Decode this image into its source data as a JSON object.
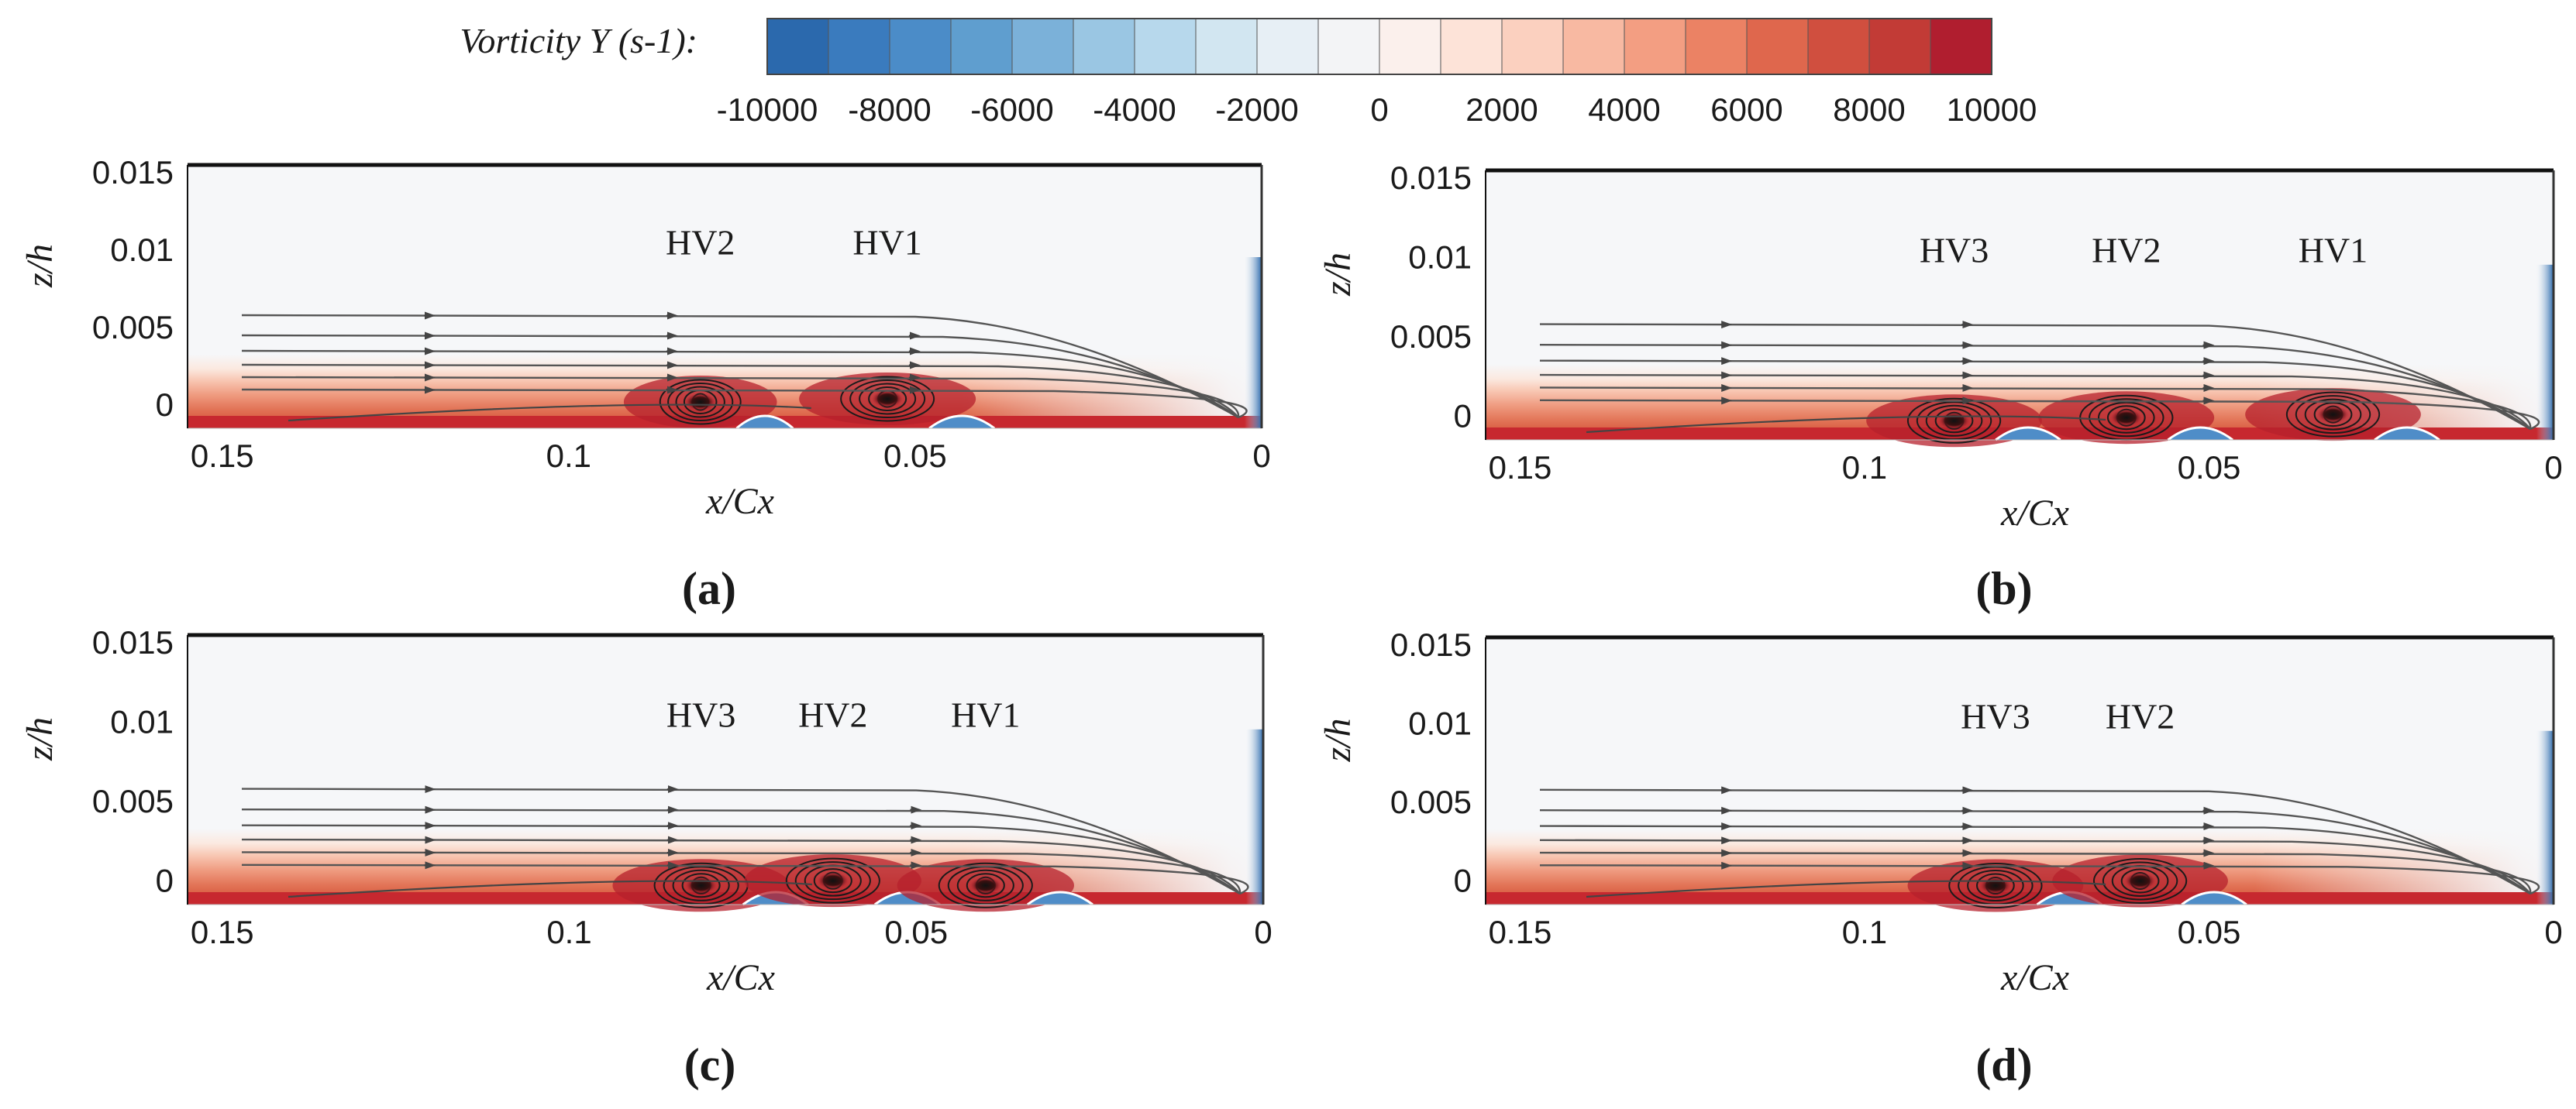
{
  "colorbar": {
    "label": "Vorticity Y",
    "unit": "(s-1):",
    "ticks": [
      "-10000",
      "-8000",
      "-6000",
      "-4000",
      "-2000",
      "0",
      "2000",
      "4000",
      "6000",
      "8000",
      "10000"
    ],
    "colors": [
      "#2b69ad",
      "#3a7bbe",
      "#4b8cc8",
      "#5f9ecf",
      "#7bb1d9",
      "#9ac6e3",
      "#b7d8ec",
      "#d2e6f1",
      "#e7eff5",
      "#f3f4f6",
      "#fbf0ec",
      "#fde3d8",
      "#fbd0bf",
      "#f8b9a2",
      "#f39e82",
      "#eb8264",
      "#df674d",
      "#d04f3f",
      "#c23b36",
      "#b01e2f"
    ]
  },
  "chart_data": [
    {
      "type": "heatmap",
      "panel": "(a)",
      "xlabel": "x/Cx",
      "ylabel": "z/h",
      "xlim": [
        0.155,
        0
      ],
      "ylim": [
        -0.0015,
        0.0155
      ],
      "x_ticks": [
        "0.15",
        "0.1",
        "0.05",
        "0"
      ],
      "y_ticks": [
        "0.015",
        "0.01",
        "0.005",
        "0"
      ],
      "vortices": [
        {
          "label": "HV2",
          "x": 0.081,
          "z": 0.0005
        },
        {
          "label": "HV1",
          "x": 0.054,
          "z": 0.0007
        }
      ]
    },
    {
      "type": "heatmap",
      "panel": "(b)",
      "xlabel": "x/Cx",
      "ylabel": "z/h",
      "xlim": [
        0.155,
        0
      ],
      "ylim": [
        -0.0015,
        0.0155
      ],
      "x_ticks": [
        "0.15",
        "0.1",
        "0.05",
        "0"
      ],
      "y_ticks": [
        "0.015",
        "0.01",
        "0.005",
        "0"
      ],
      "vortices": [
        {
          "label": "HV3",
          "x": 0.087,
          "z": 0.0
        },
        {
          "label": "HV2",
          "x": 0.062,
          "z": 0.0002
        },
        {
          "label": "HV1",
          "x": 0.032,
          "z": 0.0004
        }
      ]
    },
    {
      "type": "heatmap",
      "panel": "(c)",
      "xlabel": "x/Cx",
      "ylabel": "z/h",
      "xlim": [
        0.155,
        0
      ],
      "ylim": [
        -0.0015,
        0.0155
      ],
      "x_ticks": [
        "0.15",
        "0.1",
        "0.05",
        "0"
      ],
      "y_ticks": [
        "0.015",
        "0.01",
        "0.005",
        "0"
      ],
      "vortices": [
        {
          "label": "HV3",
          "x": 0.081,
          "z": 0.0
        },
        {
          "label": "HV2",
          "x": 0.062,
          "z": 0.0003
        },
        {
          "label": "HV1",
          "x": 0.04,
          "z": 0.0
        }
      ]
    },
    {
      "type": "heatmap",
      "panel": "(d)",
      "xlabel": "x/Cx",
      "ylabel": "z/h",
      "xlim": [
        0.155,
        0
      ],
      "ylim": [
        -0.0015,
        0.0155
      ],
      "x_ticks": [
        "0.15",
        "0.1",
        "0.05",
        "0"
      ],
      "y_ticks": [
        "0.015",
        "0.01",
        "0.005",
        "0"
      ],
      "vortices": [
        {
          "label": "HV3",
          "x": 0.081,
          "z": 0.0
        },
        {
          "label": "HV2",
          "x": 0.06,
          "z": 0.0003
        }
      ]
    }
  ]
}
